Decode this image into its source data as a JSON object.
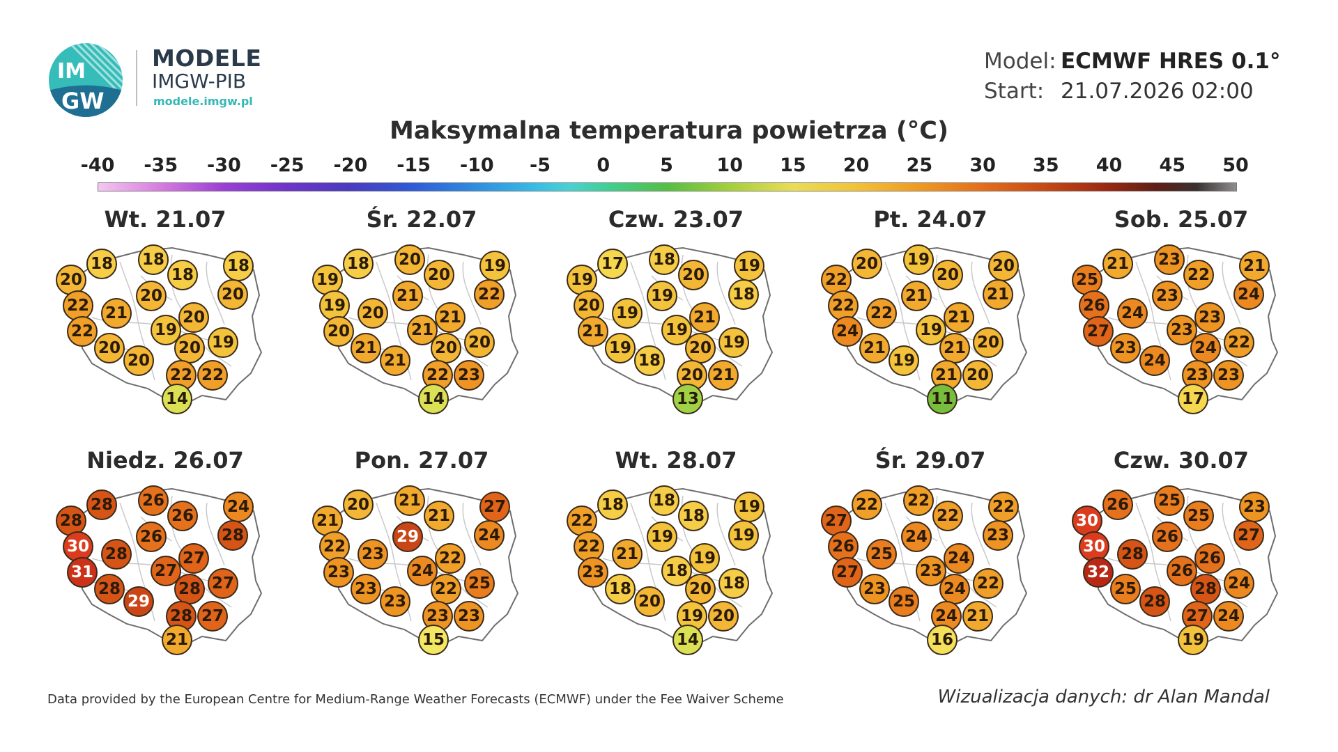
{
  "header": {
    "brand_title": "MODELE",
    "brand_subtitle": "IMGW-PIB",
    "brand_url": "modele.imgw.pl",
    "logo_text_top": "IM",
    "logo_text_bottom": "GW",
    "logo_icon": "imgw-logo-icon",
    "model_label": "Model:",
    "model_value": "ECMWF HRES 0.1°",
    "start_label": "Start:",
    "start_value": "21.07.2026 02:00"
  },
  "title": "Maksymalna temperatura powietrza (°C)",
  "colorbar": {
    "ticks": [
      "-40",
      "-35",
      "-30",
      "-25",
      "-20",
      "-15",
      "-10",
      "-5",
      "0",
      "5",
      "10",
      "15",
      "20",
      "25",
      "30",
      "35",
      "40",
      "45",
      "50"
    ]
  },
  "panels": [
    {
      "label": "Wt. 21.07",
      "values": [
        18,
        18,
        18,
        18,
        20,
        20,
        20,
        22,
        21,
        20,
        22,
        19,
        19,
        20,
        20,
        20,
        22,
        22,
        14
      ]
    },
    {
      "label": "Śr. 22.07",
      "values": [
        18,
        20,
        19,
        20,
        19,
        22,
        21,
        19,
        20,
        21,
        20,
        21,
        20,
        20,
        21,
        21,
        22,
        23,
        14
      ]
    },
    {
      "label": "Czw. 23.07",
      "values": [
        17,
        18,
        19,
        20,
        19,
        18,
        19,
        20,
        19,
        21,
        21,
        19,
        19,
        20,
        19,
        18,
        20,
        21,
        13
      ]
    },
    {
      "label": "Pt. 24.07",
      "values": [
        20,
        19,
        20,
        20,
        22,
        21,
        21,
        22,
        22,
        21,
        24,
        19,
        20,
        21,
        21,
        19,
        21,
        20,
        11
      ]
    },
    {
      "label": "Sob. 25.07",
      "values": [
        21,
        23,
        21,
        22,
        25,
        24,
        23,
        26,
        24,
        23,
        27,
        23,
        22,
        24,
        23,
        24,
        23,
        23,
        17
      ]
    },
    {
      "label": "Niedz. 26.07",
      "values": [
        28,
        26,
        24,
        26,
        28,
        28,
        26,
        30,
        28,
        27,
        31,
        27,
        27,
        28,
        28,
        29,
        28,
        27,
        21
      ]
    },
    {
      "label": "Pon. 27.07",
      "values": [
        20,
        21,
        27,
        21,
        21,
        24,
        29,
        22,
        23,
        22,
        23,
        24,
        25,
        22,
        23,
        23,
        23,
        23,
        15
      ]
    },
    {
      "label": "Wt. 28.07",
      "values": [
        18,
        18,
        19,
        18,
        22,
        19,
        19,
        22,
        21,
        19,
        23,
        18,
        18,
        20,
        18,
        20,
        19,
        20,
        14
      ]
    },
    {
      "label": "Śr. 29.07",
      "values": [
        22,
        22,
        22,
        22,
        27,
        23,
        24,
        26,
        25,
        24,
        27,
        23,
        22,
        24,
        23,
        25,
        24,
        21,
        16
      ]
    },
    {
      "label": "Czw. 30.07",
      "values": [
        26,
        25,
        23,
        25,
        30,
        27,
        26,
        30,
        28,
        26,
        32,
        26,
        24,
        28,
        25,
        28,
        27,
        24,
        19
      ]
    }
  ],
  "footer": {
    "credit": "Data provided by the European Centre for Medium-Range Weather Forecasts (ECMWF) under the Fee Waiver Scheme",
    "author": "Wizualizacja danych: dr Alan Mandal"
  }
}
